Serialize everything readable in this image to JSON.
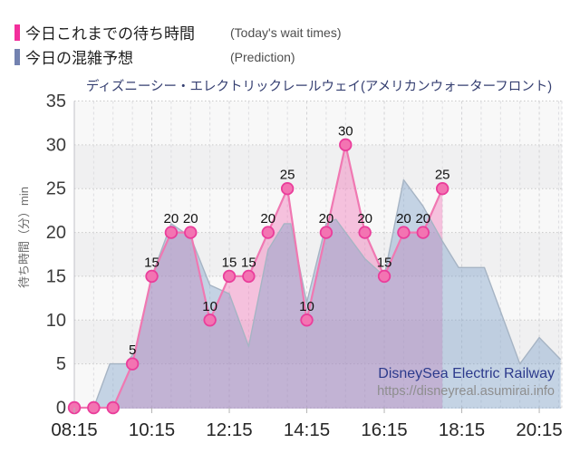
{
  "legend": {
    "items": [
      {
        "label": "今日これまでの待ち時間",
        "note": "(Today's wait times)",
        "color": "#f32f9c"
      },
      {
        "label": "今日の混雑予想",
        "note": "(Prediction)",
        "color": "#7382b0"
      }
    ]
  },
  "chart_data": {
    "type": "area",
    "title": "ディズニーシー・エレクトリックレールウェイ(アメリカンウォーターフロント)",
    "ylabel": "待ち時間（分）min",
    "ylim": [
      0,
      35
    ],
    "yticks": [
      0,
      5,
      10,
      15,
      20,
      25,
      30,
      35
    ],
    "xtick_labels": [
      "08:15",
      "10:15",
      "12:15",
      "14:15",
      "16:15",
      "18:15",
      "20:15"
    ],
    "x_range": [
      "08:15",
      "20:50"
    ],
    "grid": true,
    "legend_position": "top-left",
    "series": [
      {
        "name": "今日これまでの待ち時間 (Today's wait times)",
        "type": "line+markers+area",
        "color_line": "#f078b2",
        "color_marker": "#f374b2",
        "color_marker_edge": "#ea3d9b",
        "color_fill": "rgba(240,110,180,0.40)",
        "data_labels": true,
        "points": [
          [
            "08:15",
            0
          ],
          [
            "08:45",
            0
          ],
          [
            "09:15",
            0
          ],
          [
            "09:45",
            5
          ],
          [
            "10:15",
            15
          ],
          [
            "10:45",
            20
          ],
          [
            "11:15",
            20
          ],
          [
            "11:45",
            10
          ],
          [
            "12:15",
            15
          ],
          [
            "12:45",
            15
          ],
          [
            "13:15",
            20
          ],
          [
            "13:45",
            25
          ],
          [
            "14:15",
            10
          ],
          [
            "14:45",
            20
          ],
          [
            "15:15",
            30
          ],
          [
            "15:45",
            20
          ],
          [
            "16:15",
            15
          ],
          [
            "16:45",
            20
          ],
          [
            "17:15",
            20
          ],
          [
            "17:45",
            25
          ]
        ]
      },
      {
        "name": "今日の混雑予想 (Prediction)",
        "type": "area",
        "color_edge": "#a6b4c4",
        "color_fill": "rgba(125,160,200,0.42)",
        "data_labels": false,
        "points": [
          [
            "08:15",
            0
          ],
          [
            "08:45",
            0
          ],
          [
            "09:10",
            5
          ],
          [
            "09:35",
            5
          ],
          [
            "09:50",
            6.5
          ],
          [
            "10:15",
            15
          ],
          [
            "10:45",
            21
          ],
          [
            "11:15",
            19.5
          ],
          [
            "11:45",
            14
          ],
          [
            "12:15",
            13
          ],
          [
            "12:45",
            7
          ],
          [
            "13:15",
            18
          ],
          [
            "13:40",
            21
          ],
          [
            "13:50",
            21
          ],
          [
            "14:15",
            12
          ],
          [
            "14:45",
            21
          ],
          [
            "15:00",
            21.5
          ],
          [
            "15:45",
            17
          ],
          [
            "16:15",
            15
          ],
          [
            "16:45",
            26
          ],
          [
            "17:15",
            23
          ],
          [
            "17:45",
            19
          ],
          [
            "18:10",
            16
          ],
          [
            "18:50",
            16
          ],
          [
            "19:45",
            5
          ],
          [
            "20:15",
            8
          ],
          [
            "20:48",
            5.5
          ]
        ]
      }
    ],
    "watermark": {
      "line1": "DisneySea Electric Railway",
      "line2": "https://disneyreal.asumirai.info"
    }
  }
}
